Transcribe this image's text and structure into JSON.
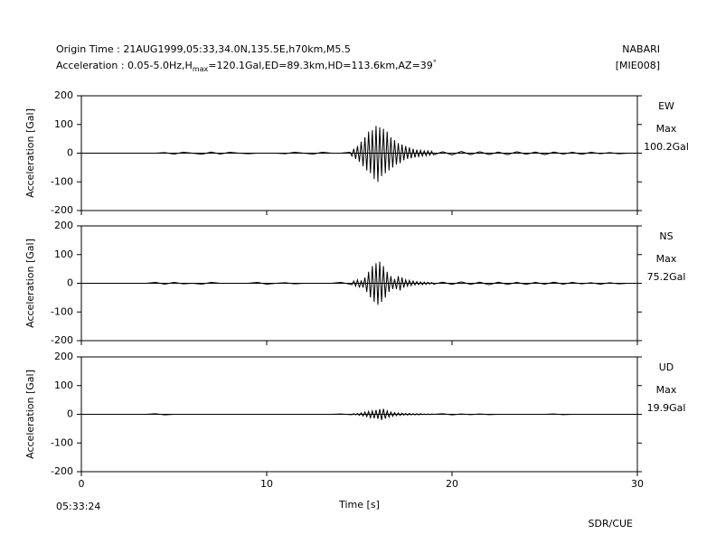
{
  "header": {
    "origin": "Origin Time : 21AUG1999,05:33,34.0N,135.5E,h70km,M5.5",
    "acceleration_prefix": "Acceleration : 0.05-5.0Hz,H",
    "acceleration_subscript": "max",
    "acceleration_suffix": "=120.1Gal,ED=89.3km,HD=113.6km,AZ=39",
    "acceleration_degree": "°",
    "station": "NABARI",
    "code": "[MIE008]"
  },
  "footer": {
    "start_time": "05:33:24",
    "credit": "SDR/CUE"
  },
  "chart_data": [
    {
      "type": "line",
      "channel": "EW",
      "max_label": "Max",
      "max_value": "100.2Gal",
      "ylabel": "Acceleration [Gal]",
      "color": "#000000",
      "xlim": [
        0,
        30
      ],
      "xticks": [
        0,
        10,
        20,
        30
      ],
      "xtick_labels": false,
      "ylim": [
        -200,
        200
      ],
      "yticks": [
        200,
        100,
        0,
        -100,
        -200
      ],
      "x": [
        0,
        0.5,
        1,
        1.5,
        2,
        2.5,
        3,
        3.5,
        4,
        4.5,
        5,
        5.5,
        6,
        6.5,
        7,
        7.5,
        8,
        8.5,
        9,
        9.5,
        10,
        10.5,
        11,
        11.5,
        12,
        12.5,
        13,
        13.5,
        14,
        14.5,
        14.6,
        14.7,
        14.8,
        14.9,
        15.0,
        15.1,
        15.2,
        15.3,
        15.4,
        15.5,
        15.6,
        15.7,
        15.8,
        15.9,
        16.0,
        16.1,
        16.2,
        16.3,
        16.4,
        16.5,
        16.6,
        16.7,
        16.8,
        16.9,
        17.0,
        17.1,
        17.2,
        17.3,
        17.4,
        17.5,
        17.6,
        17.7,
        17.8,
        17.9,
        18.0,
        18.1,
        18.2,
        18.3,
        18.4,
        18.5,
        18.6,
        18.7,
        18.8,
        18.9,
        19.0,
        19.5,
        20,
        20.5,
        21,
        21.5,
        22,
        22.5,
        23,
        23.5,
        24,
        24.5,
        25,
        25.5,
        26,
        26.5,
        27,
        27.5,
        28,
        28.5,
        29,
        29.5,
        30
      ],
      "values": [
        0,
        0,
        0,
        0,
        0,
        0,
        0,
        0,
        0,
        2,
        -3,
        3,
        0,
        -4,
        4,
        -3,
        3,
        0,
        -2,
        0,
        0,
        0,
        -2,
        3,
        0,
        -3,
        3,
        0,
        0,
        3,
        -10,
        15,
        -20,
        25,
        -30,
        40,
        -45,
        55,
        -60,
        75,
        -70,
        80,
        -90,
        95,
        -100,
        90,
        -80,
        85,
        -70,
        75,
        -60,
        55,
        -50,
        45,
        -40,
        35,
        -35,
        30,
        -25,
        25,
        -20,
        20,
        -18,
        15,
        -15,
        12,
        -12,
        10,
        -10,
        8,
        -9,
        8,
        -7,
        7,
        -6,
        5,
        -6,
        6,
        -5,
        5,
        -5,
        4,
        -5,
        5,
        -4,
        4,
        -5,
        4,
        -3,
        3,
        -4,
        3,
        -2,
        2,
        -2,
        0,
        0
      ]
    },
    {
      "type": "line",
      "channel": "NS",
      "max_label": "Max",
      "max_value": "75.2Gal",
      "ylabel": "Acceleration [Gal]",
      "color": "#000000",
      "xlim": [
        0,
        30
      ],
      "xticks": [
        0,
        10,
        20,
        30
      ],
      "xtick_labels": false,
      "ylim": [
        -200,
        200
      ],
      "yticks": [
        200,
        100,
        0,
        -100,
        -200
      ],
      "x": [
        0,
        0.5,
        1,
        1.5,
        2,
        2.5,
        3,
        3.5,
        4,
        4.5,
        5,
        5.5,
        6,
        6.5,
        7,
        7.5,
        8,
        8.5,
        9,
        9.5,
        10,
        10.5,
        11,
        11.5,
        12,
        12.5,
        13,
        13.5,
        14,
        14.5,
        14.6,
        14.7,
        14.8,
        14.9,
        15.0,
        15.1,
        15.2,
        15.3,
        15.4,
        15.5,
        15.6,
        15.7,
        15.8,
        15.9,
        16.0,
        16.1,
        16.2,
        16.3,
        16.4,
        16.5,
        16.6,
        16.7,
        16.8,
        16.9,
        17.0,
        17.1,
        17.2,
        17.3,
        17.4,
        17.5,
        17.6,
        17.7,
        17.8,
        17.9,
        18.0,
        18.1,
        18.2,
        18.3,
        18.4,
        18.5,
        18.6,
        18.7,
        18.8,
        18.9,
        19.0,
        19.5,
        20,
        20.5,
        21,
        21.5,
        22,
        22.5,
        23,
        23.5,
        24,
        24.5,
        25,
        25.5,
        26,
        26.5,
        27,
        27.5,
        28,
        28.5,
        29,
        29.5,
        30
      ],
      "values": [
        0,
        0,
        0,
        0,
        0,
        0,
        0,
        0,
        3,
        -3,
        3,
        -2,
        0,
        -3,
        3,
        0,
        0,
        0,
        0,
        3,
        -3,
        0,
        2,
        -2,
        0,
        0,
        0,
        0,
        3,
        -3,
        -5,
        8,
        -10,
        12,
        -15,
        10,
        -15,
        20,
        -30,
        40,
        -50,
        60,
        -65,
        70,
        -75,
        75,
        -65,
        60,
        -50,
        40,
        -30,
        25,
        -20,
        15,
        -20,
        25,
        -25,
        20,
        -15,
        12,
        -10,
        10,
        -8,
        8,
        -6,
        6,
        -5,
        5,
        -5,
        4,
        -4,
        4,
        -3,
        3,
        -3,
        4,
        -4,
        5,
        -4,
        4,
        -5,
        4,
        -4,
        3,
        -4,
        3,
        -3,
        4,
        -3,
        3,
        -2,
        2,
        -3,
        2,
        -2,
        0,
        0
      ]
    },
    {
      "type": "line",
      "channel": "UD",
      "max_label": "Max",
      "max_value": "19.9Gal",
      "ylabel": "Acceleration [Gal]",
      "color": "#000000",
      "xlim": [
        0,
        30
      ],
      "xticks": [
        0,
        10,
        20,
        30
      ],
      "xtick_labels": true,
      "xlabel": "Time [s]",
      "ylim": [
        -200,
        200
      ],
      "yticks": [
        200,
        100,
        0,
        -100,
        -200
      ],
      "x": [
        0,
        0.5,
        1,
        1.5,
        2,
        2.5,
        3,
        3.5,
        4,
        4.5,
        5,
        5.5,
        6,
        6.5,
        7,
        7.5,
        8,
        8.5,
        9,
        9.5,
        10,
        10.5,
        11,
        11.5,
        12,
        12.5,
        13,
        13.5,
        14,
        14.5,
        14.6,
        14.7,
        14.8,
        14.9,
        15.0,
        15.1,
        15.2,
        15.3,
        15.4,
        15.5,
        15.6,
        15.7,
        15.8,
        15.9,
        16.0,
        16.1,
        16.2,
        16.3,
        16.4,
        16.5,
        16.6,
        16.7,
        16.8,
        16.9,
        17.0,
        17.1,
        17.2,
        17.3,
        17.4,
        17.5,
        17.6,
        17.7,
        17.8,
        17.9,
        18.0,
        18.1,
        18.2,
        18.3,
        18.4,
        18.5,
        18.6,
        18.7,
        18.8,
        18.9,
        19.0,
        19.5,
        20,
        20.5,
        21,
        21.5,
        22,
        22.5,
        23,
        23.5,
        24,
        24.5,
        25,
        25.5,
        26,
        26.5,
        27,
        27.5,
        28,
        28.5,
        29,
        29.5,
        30
      ],
      "values": [
        0,
        0,
        0,
        0,
        0,
        0,
        0,
        0,
        2,
        -2,
        0,
        0,
        0,
        0,
        0,
        0,
        0,
        0,
        0,
        0,
        0,
        0,
        0,
        0,
        0,
        0,
        0,
        0,
        1,
        -1,
        -1,
        2,
        -2,
        3,
        -4,
        5,
        -6,
        8,
        -8,
        10,
        -12,
        12,
        -14,
        15,
        -16,
        18,
        -20,
        19,
        -15,
        12,
        -10,
        8,
        -7,
        6,
        -5,
        5,
        -4,
        4,
        -3,
        3,
        -3,
        3,
        -2,
        2,
        -2,
        2,
        -2,
        2,
        -1,
        1,
        -1,
        1,
        -1,
        1,
        0,
        2,
        -2,
        1,
        -1,
        1,
        -1,
        0,
        0,
        0,
        0,
        0,
        0,
        1,
        -1,
        0,
        0,
        0,
        0,
        0,
        0,
        0,
        0
      ]
    }
  ]
}
